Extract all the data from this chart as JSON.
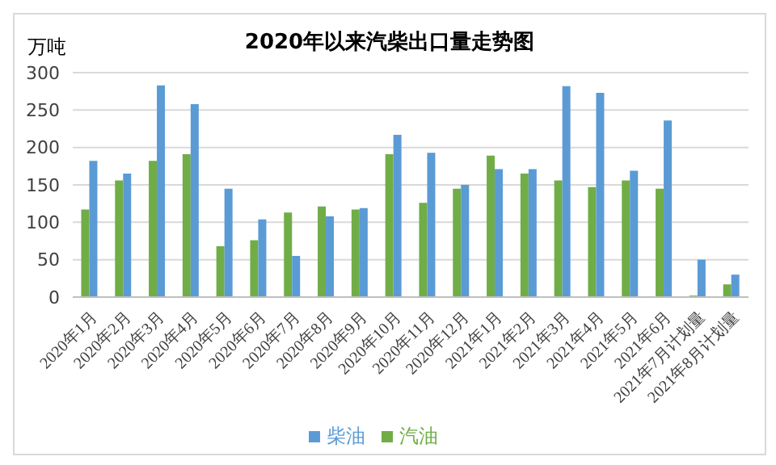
{
  "chart_data": {
    "type": "bar",
    "title": "2020年以来汽柴出口量走势图",
    "ylabel": "万吨",
    "categories": [
      "2020年1月",
      "2020年2月",
      "2020年3月",
      "2020年4月",
      "2020年5月",
      "2020年6月",
      "2020年7月",
      "2020年8月",
      "2020年9月",
      "2020年10月",
      "2020年11月",
      "2020年12月",
      "2021年1月",
      "2021年2月",
      "2021年3月",
      "2021年4月",
      "2021年5月",
      "2021年6月",
      "2021年7月计划量",
      "2021年8月计划量"
    ],
    "series": [
      {
        "name": "汽油",
        "color": "#70ad47",
        "values": [
          117,
          156,
          182,
          191,
          68,
          76,
          113,
          121,
          117,
          191,
          126,
          145,
          189,
          165,
          156,
          147,
          156,
          145,
          2,
          17
        ]
      },
      {
        "name": "柴油",
        "color": "#5b9bd5",
        "values": [
          182,
          165,
          283,
          258,
          145,
          104,
          55,
          108,
          119,
          217,
          193,
          150,
          171,
          171,
          282,
          273,
          169,
          236,
          50,
          30
        ]
      }
    ],
    "ylim": [
      0,
      300
    ],
    "yticks": [
      0,
      50,
      100,
      150,
      200,
      250,
      300
    ],
    "grid": "y",
    "legend": "bottom"
  }
}
